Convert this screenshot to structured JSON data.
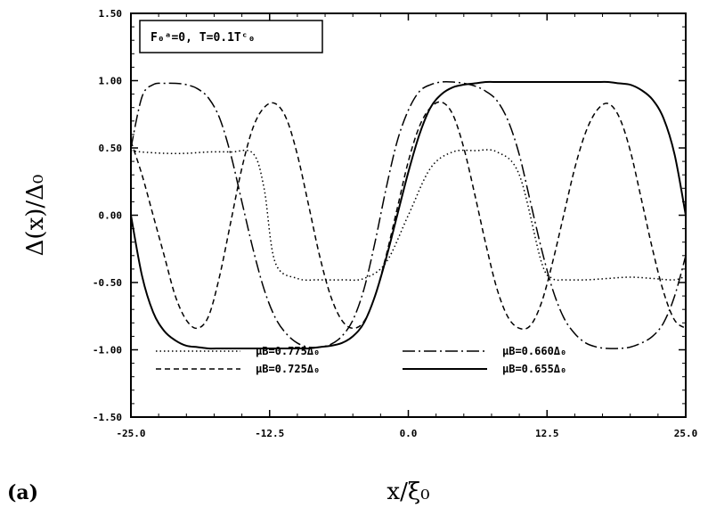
{
  "panel_label": "(a)",
  "chart_data": {
    "type": "line",
    "annotation": "F₀ᵃ=0, T=0.1Tᶜ₀",
    "xlabel": "x/ξ₀",
    "ylabel": "Δ(x)/Δ₀",
    "xlim": [
      -25.0,
      25.0
    ],
    "ylim": [
      -1.5,
      1.5
    ],
    "x_ticks": [
      "-25.0",
      "-12.5",
      "0.0",
      "12.5",
      "25.0"
    ],
    "y_ticks": [
      "1.50",
      "1.00",
      "0.50",
      "0.00",
      "-0.50",
      "-1.00",
      "-1.50"
    ],
    "legend_position": "lower-center",
    "grid": false,
    "series": [
      {
        "name": "μB=0.775Δ₀",
        "style": "dotted",
        "x": [
          -25,
          -24,
          -22,
          -20,
          -18,
          -16,
          -14,
          -13,
          -12,
          -10,
          -8,
          -6,
          -4,
          -2,
          0,
          2,
          4,
          6,
          8,
          10,
          12,
          13,
          14,
          16,
          18,
          20,
          22,
          24,
          25
        ],
        "y": [
          0.48,
          0.47,
          0.46,
          0.46,
          0.47,
          0.47,
          0.46,
          0.2,
          -0.35,
          -0.47,
          -0.48,
          -0.48,
          -0.47,
          -0.35,
          0.0,
          0.35,
          0.47,
          0.48,
          0.47,
          0.3,
          -0.35,
          -0.47,
          -0.48,
          -0.48,
          -0.47,
          -0.46,
          -0.47,
          -0.48,
          -0.45
        ]
      },
      {
        "name": "μB=0.725Δ₀",
        "style": "dashed",
        "x": [
          -25,
          -24,
          -23,
          -22,
          -21,
          -20,
          -19,
          -18,
          -17,
          -16,
          -15,
          -14,
          -13,
          -12,
          -11,
          -10,
          -9,
          -8,
          -7,
          -6,
          -5,
          -4,
          -3,
          -2,
          -1,
          0,
          1,
          2,
          3,
          4,
          5,
          6,
          7,
          8,
          9,
          10,
          11,
          12,
          13,
          14,
          15,
          16,
          17,
          18,
          19,
          20,
          21,
          22,
          23,
          24,
          25
        ],
        "y": [
          0.55,
          0.3,
          0.0,
          -0.3,
          -0.6,
          -0.78,
          -0.84,
          -0.75,
          -0.45,
          -0.05,
          0.35,
          0.65,
          0.8,
          0.83,
          0.72,
          0.45,
          0.08,
          -0.3,
          -0.6,
          -0.78,
          -0.84,
          -0.79,
          -0.6,
          -0.3,
          0.05,
          0.4,
          0.66,
          0.8,
          0.84,
          0.75,
          0.5,
          0.15,
          -0.22,
          -0.55,
          -0.76,
          -0.84,
          -0.82,
          -0.65,
          -0.35,
          0.0,
          0.35,
          0.62,
          0.78,
          0.83,
          0.73,
          0.48,
          0.12,
          -0.25,
          -0.57,
          -0.78,
          -0.84
        ]
      },
      {
        "name": "μB=0.660Δ₀",
        "style": "dashdot",
        "x": [
          -25,
          -24,
          -23,
          -22,
          -21,
          -20,
          -19,
          -18,
          -17,
          -16,
          -15,
          -14,
          -13,
          -12,
          -11,
          -10,
          -9,
          -8,
          -7,
          -6,
          -5,
          -4,
          -3,
          -2,
          -1,
          0,
          1,
          2,
          3,
          4,
          5,
          6,
          7,
          8,
          9,
          10,
          11,
          12,
          13,
          14,
          15,
          16,
          17,
          18,
          19,
          20,
          21,
          22,
          23,
          24,
          25
        ],
        "y": [
          0.5,
          0.88,
          0.97,
          0.98,
          0.98,
          0.97,
          0.94,
          0.87,
          0.72,
          0.45,
          0.1,
          -0.25,
          -0.55,
          -0.76,
          -0.88,
          -0.95,
          -0.98,
          -0.98,
          -0.96,
          -0.9,
          -0.78,
          -0.55,
          -0.2,
          0.2,
          0.55,
          0.78,
          0.92,
          0.97,
          0.99,
          0.99,
          0.98,
          0.96,
          0.92,
          0.85,
          0.7,
          0.45,
          0.1,
          -0.25,
          -0.55,
          -0.76,
          -0.88,
          -0.95,
          -0.98,
          -0.99,
          -0.99,
          -0.98,
          -0.95,
          -0.9,
          -0.8,
          -0.6,
          -0.3
        ]
      },
      {
        "name": "μB=0.655Δ₀",
        "style": "solid",
        "x": [
          -25,
          -24,
          -23,
          -22,
          -21,
          -20,
          -19,
          -18,
          -17,
          -16,
          -15,
          -14,
          -13,
          -12,
          -11,
          -10,
          -9,
          -8,
          -7,
          -6,
          -5,
          -4,
          -3,
          -2,
          -1,
          0,
          1,
          2,
          3,
          4,
          5,
          6,
          7,
          8,
          9,
          10,
          11,
          12,
          13,
          14,
          15,
          16,
          17,
          18,
          19,
          20,
          21,
          22,
          23,
          24,
          25
        ],
        "y": [
          0.0,
          -0.45,
          -0.72,
          -0.86,
          -0.93,
          -0.97,
          -0.98,
          -0.99,
          -0.99,
          -0.99,
          -0.99,
          -0.99,
          -0.99,
          -0.99,
          -0.99,
          -0.99,
          -0.99,
          -0.98,
          -0.97,
          -0.95,
          -0.9,
          -0.8,
          -0.6,
          -0.32,
          0.0,
          0.32,
          0.6,
          0.8,
          0.9,
          0.95,
          0.97,
          0.98,
          0.99,
          0.99,
          0.99,
          0.99,
          0.99,
          0.99,
          0.99,
          0.99,
          0.99,
          0.99,
          0.99,
          0.99,
          0.98,
          0.97,
          0.93,
          0.86,
          0.72,
          0.45,
          0.0
        ]
      }
    ]
  }
}
